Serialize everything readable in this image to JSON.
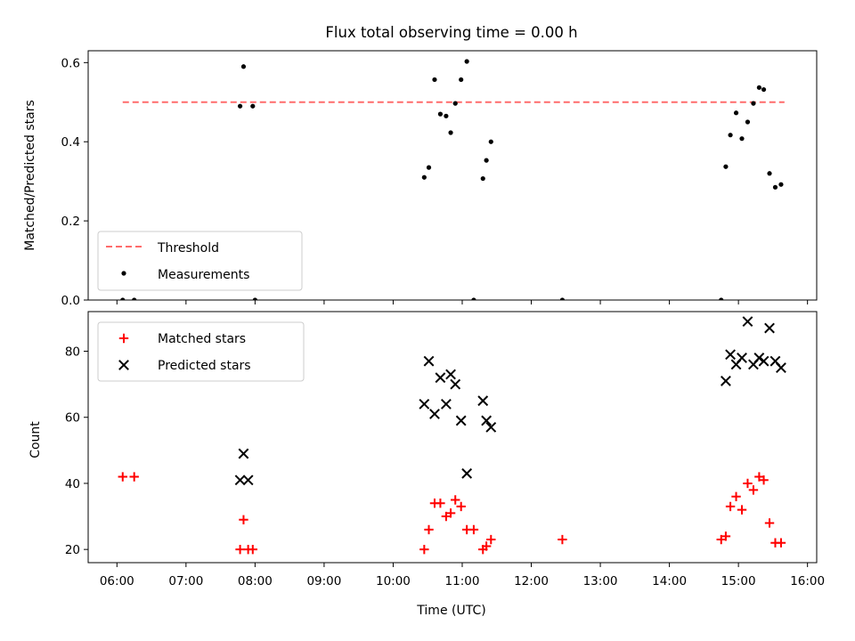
{
  "title": "Flux total observing time = 0.00 h",
  "chart_data": [
    {
      "type": "scatter",
      "panel": "top",
      "ylabel": "Matched/Predicted stars",
      "ylim": [
        0,
        0.63
      ],
      "yticks": [
        0.0,
        0.2,
        0.4,
        0.6
      ],
      "ytick_labels": [
        "0.0",
        "0.2",
        "0.4",
        "0.6"
      ],
      "legend_placement": "lower-left",
      "threshold": {
        "name": "Threshold",
        "value": 0.5,
        "x_start": "06:05",
        "x_end": "15:40",
        "color": "#ff6b6b"
      },
      "series": [
        {
          "name": "Measurements",
          "color": "#000000",
          "marker": "dot",
          "points": [
            [
              "06:05",
              0.0
            ],
            [
              "06:15",
              0.0
            ],
            [
              "07:47",
              0.49
            ],
            [
              "07:50",
              0.59
            ],
            [
              "07:58",
              0.49
            ],
            [
              "08:00",
              0.0
            ],
            [
              "10:27",
              0.31
            ],
            [
              "10:31",
              0.335
            ],
            [
              "10:36",
              0.557
            ],
            [
              "10:41",
              0.47
            ],
            [
              "10:46",
              0.465
            ],
            [
              "10:50",
              0.423
            ],
            [
              "10:54",
              0.497
            ],
            [
              "10:59",
              0.557
            ],
            [
              "11:04",
              0.603
            ],
            [
              "11:10",
              0.0
            ],
            [
              "11:18",
              0.307
            ],
            [
              "11:21",
              0.353
            ],
            [
              "11:25",
              0.4
            ],
            [
              "12:27",
              0.0
            ],
            [
              "14:45",
              0.0
            ],
            [
              "14:49",
              0.337
            ],
            [
              "14:53",
              0.417
            ],
            [
              "14:58",
              0.473
            ],
            [
              "15:03",
              0.408
            ],
            [
              "15:08",
              0.45
            ],
            [
              "15:13",
              0.497
            ],
            [
              "15:18",
              0.537
            ],
            [
              "15:22",
              0.532
            ],
            [
              "15:27",
              0.32
            ],
            [
              "15:32",
              0.285
            ],
            [
              "15:37",
              0.292
            ]
          ]
        }
      ]
    },
    {
      "type": "scatter",
      "panel": "bottom",
      "xlabel": "Time (UTC)",
      "ylabel": "Count",
      "ylim": [
        16,
        92
      ],
      "yticks": [
        20,
        40,
        60,
        80
      ],
      "ytick_labels": [
        "20",
        "40",
        "60",
        "80"
      ],
      "xlim": [
        "05:35",
        "16:08"
      ],
      "xtick_labels": [
        "06:00",
        "07:00",
        "08:00",
        "09:00",
        "10:00",
        "11:00",
        "12:00",
        "13:00",
        "14:00",
        "15:00",
        "16:00"
      ],
      "legend_placement": "upper-left",
      "series": [
        {
          "name": "Matched stars",
          "color": "#ff0000",
          "marker": "plus",
          "points": [
            [
              "06:05",
              42
            ],
            [
              "06:15",
              42
            ],
            [
              "07:47",
              20
            ],
            [
              "07:50",
              29
            ],
            [
              "07:54",
              20
            ],
            [
              "07:58",
              20
            ],
            [
              "10:27",
              20
            ],
            [
              "10:31",
              26
            ],
            [
              "10:36",
              34
            ],
            [
              "10:41",
              34
            ],
            [
              "10:46",
              30
            ],
            [
              "10:50",
              31
            ],
            [
              "10:54",
              35
            ],
            [
              "10:59",
              33
            ],
            [
              "11:04",
              26
            ],
            [
              "11:10",
              26
            ],
            [
              "11:18",
              20
            ],
            [
              "11:21",
              21
            ],
            [
              "11:25",
              23
            ],
            [
              "12:27",
              23
            ],
            [
              "14:45",
              23
            ],
            [
              "14:49",
              24
            ],
            [
              "14:53",
              33
            ],
            [
              "14:58",
              36
            ],
            [
              "15:03",
              32
            ],
            [
              "15:08",
              40
            ],
            [
              "15:13",
              38
            ],
            [
              "15:18",
              42
            ],
            [
              "15:22",
              41
            ],
            [
              "15:27",
              28
            ],
            [
              "15:32",
              22
            ],
            [
              "15:37",
              22
            ]
          ]
        },
        {
          "name": "Predicted stars",
          "color": "#000000",
          "marker": "x",
          "points": [
            [
              "07:47",
              41
            ],
            [
              "07:50",
              49
            ],
            [
              "07:54",
              41
            ],
            [
              "10:27",
              64
            ],
            [
              "10:31",
              77
            ],
            [
              "10:36",
              61
            ],
            [
              "10:41",
              72
            ],
            [
              "10:46",
              64
            ],
            [
              "10:50",
              73
            ],
            [
              "10:54",
              70
            ],
            [
              "10:59",
              59
            ],
            [
              "11:04",
              43
            ],
            [
              "11:18",
              65
            ],
            [
              "11:21",
              59
            ],
            [
              "11:25",
              57
            ],
            [
              "14:49",
              71
            ],
            [
              "14:53",
              79
            ],
            [
              "14:58",
              76
            ],
            [
              "15:03",
              78
            ],
            [
              "15:08",
              89
            ],
            [
              "15:13",
              76
            ],
            [
              "15:18",
              78
            ],
            [
              "15:22",
              77
            ],
            [
              "15:27",
              87
            ],
            [
              "15:32",
              77
            ],
            [
              "15:37",
              75
            ]
          ]
        }
      ]
    }
  ]
}
